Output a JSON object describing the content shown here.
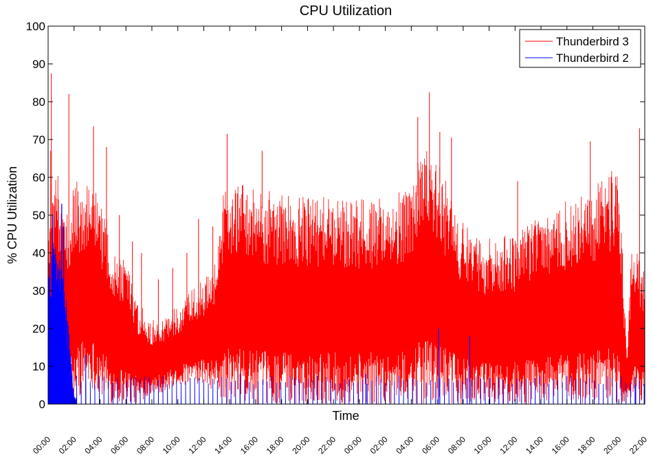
{
  "chart_data": {
    "type": "line",
    "title": "CPU Utilization",
    "xlabel": "Time",
    "ylabel": "% CPU Utilization",
    "ylim": [
      0,
      100
    ],
    "xlim": [
      0,
      46
    ],
    "yticks": [
      0,
      10,
      20,
      30,
      40,
      50,
      60,
      70,
      80,
      90,
      100
    ],
    "ytick_labels": [
      "0",
      "10",
      "20",
      "30",
      "40",
      "50",
      "60",
      "70",
      "80",
      "90",
      "100"
    ],
    "xtick_hours": [
      0,
      2,
      4,
      6,
      8,
      10,
      12,
      14,
      16,
      18,
      20,
      22,
      24,
      26,
      28,
      30,
      32,
      34,
      36,
      38,
      40,
      42,
      44,
      46
    ],
    "xtick_labels": [
      "00:00",
      "02:00",
      "04:00",
      "06:00",
      "08:00",
      "10:00",
      "12:00",
      "14:00",
      "16:00",
      "18:00",
      "20:00",
      "22:00",
      "00:00",
      "02:00",
      "04:00",
      "06:00",
      "08:00",
      "10:00",
      "12:00",
      "14:00",
      "16:00",
      "18:00",
      "20:00",
      "22:00"
    ],
    "grid": false,
    "legend_position": "top-right",
    "series": [
      {
        "name": "Thunderbird 3",
        "color": "#ff0000",
        "envelope": {
          "hours": [
            0,
            0.3,
            1,
            1.6,
            2,
            3,
            3.5,
            4.5,
            5,
            6,
            7,
            8,
            9,
            10,
            11,
            12,
            13,
            13.5,
            14,
            15,
            16,
            18,
            20,
            22,
            24,
            26,
            28,
            28.5,
            29.5,
            30,
            31,
            32,
            34,
            36,
            38,
            40,
            41,
            42,
            43,
            43.5,
            44,
            44.3,
            44.6,
            45,
            45.4,
            46
          ],
          "base": [
            18,
            20,
            22,
            28,
            36,
            40,
            42,
            38,
            32,
            22,
            17,
            15,
            17,
            19,
            21,
            24,
            28,
            40,
            50,
            52,
            52,
            51,
            50,
            49,
            48,
            48,
            48,
            55,
            60,
            62,
            44,
            34,
            30,
            30,
            31,
            33,
            34,
            38,
            42,
            48,
            52,
            36,
            10,
            28,
            26,
            24
          ],
          "low": [
            0,
            0,
            0,
            0,
            0,
            5,
            4,
            0,
            0,
            0,
            0,
            3,
            3,
            5,
            5,
            5,
            3,
            0,
            0,
            0,
            0,
            0,
            0,
            0,
            0,
            0,
            0,
            0,
            0,
            0,
            0,
            0,
            0,
            0,
            0,
            0,
            0,
            0,
            0,
            0,
            0,
            0,
            0,
            0,
            0,
            0
          ],
          "high": [
            52,
            62,
            60,
            50,
            61,
            60,
            57,
            52,
            42,
            40,
            27,
            22,
            24,
            26,
            30,
            33,
            39,
            57,
            60,
            58,
            57,
            56,
            55,
            55,
            55,
            55,
            58,
            65,
            68,
            67,
            56,
            48,
            44,
            45,
            50,
            54,
            56,
            58,
            60,
            62,
            62,
            40,
            14,
            42,
            40,
            36
          ]
        },
        "peaks": [
          {
            "t": 0.25,
            "v": 87.5
          },
          {
            "t": 0.2,
            "v": 67
          },
          {
            "t": 1.6,
            "v": 82
          },
          {
            "t": 3.5,
            "v": 73.5
          },
          {
            "t": 4.5,
            "v": 68
          },
          {
            "t": 5.5,
            "v": 50
          },
          {
            "t": 6.5,
            "v": 43
          },
          {
            "t": 7.2,
            "v": 40
          },
          {
            "t": 8.5,
            "v": 33
          },
          {
            "t": 9.6,
            "v": 36
          },
          {
            "t": 10.7,
            "v": 40
          },
          {
            "t": 11.6,
            "v": 49
          },
          {
            "t": 12.7,
            "v": 47
          },
          {
            "t": 13.8,
            "v": 71.5
          },
          {
            "t": 16.5,
            "v": 67
          },
          {
            "t": 28.5,
            "v": 76
          },
          {
            "t": 29.4,
            "v": 82.5
          },
          {
            "t": 30.2,
            "v": 72
          },
          {
            "t": 31.1,
            "v": 70.5
          },
          {
            "t": 36.2,
            "v": 59
          },
          {
            "t": 41.8,
            "v": 69.5
          },
          {
            "t": 45.6,
            "v": 73
          }
        ]
      },
      {
        "name": "Thunderbird 2",
        "color": "#0000ff",
        "envelope": {
          "hours": [
            0,
            0.5,
            1,
            1.5,
            2,
            46
          ],
          "base": [
            0,
            0,
            0,
            0,
            0,
            0
          ],
          "low": [
            0,
            0,
            0,
            0,
            0,
            0
          ],
          "high": [
            35,
            45,
            38,
            25,
            2,
            2
          ]
        },
        "peaks": [
          {
            "t": 0.35,
            "v": 50
          },
          {
            "t": 0.55,
            "v": 33
          },
          {
            "t": 1.05,
            "v": 53
          },
          {
            "t": 1.2,
            "v": 47
          },
          {
            "t": 1.5,
            "v": 22
          },
          {
            "t": 2.9,
            "v": 13
          },
          {
            "t": 14.8,
            "v": 8
          },
          {
            "t": 24.5,
            "v": 8
          },
          {
            "t": 30.1,
            "v": 20
          },
          {
            "t": 32.5,
            "v": 18
          },
          {
            "t": 45.3,
            "v": 5
          }
        ],
        "typical_spike_max": 7.5,
        "spike_interval_hours": 0.35
      }
    ]
  }
}
